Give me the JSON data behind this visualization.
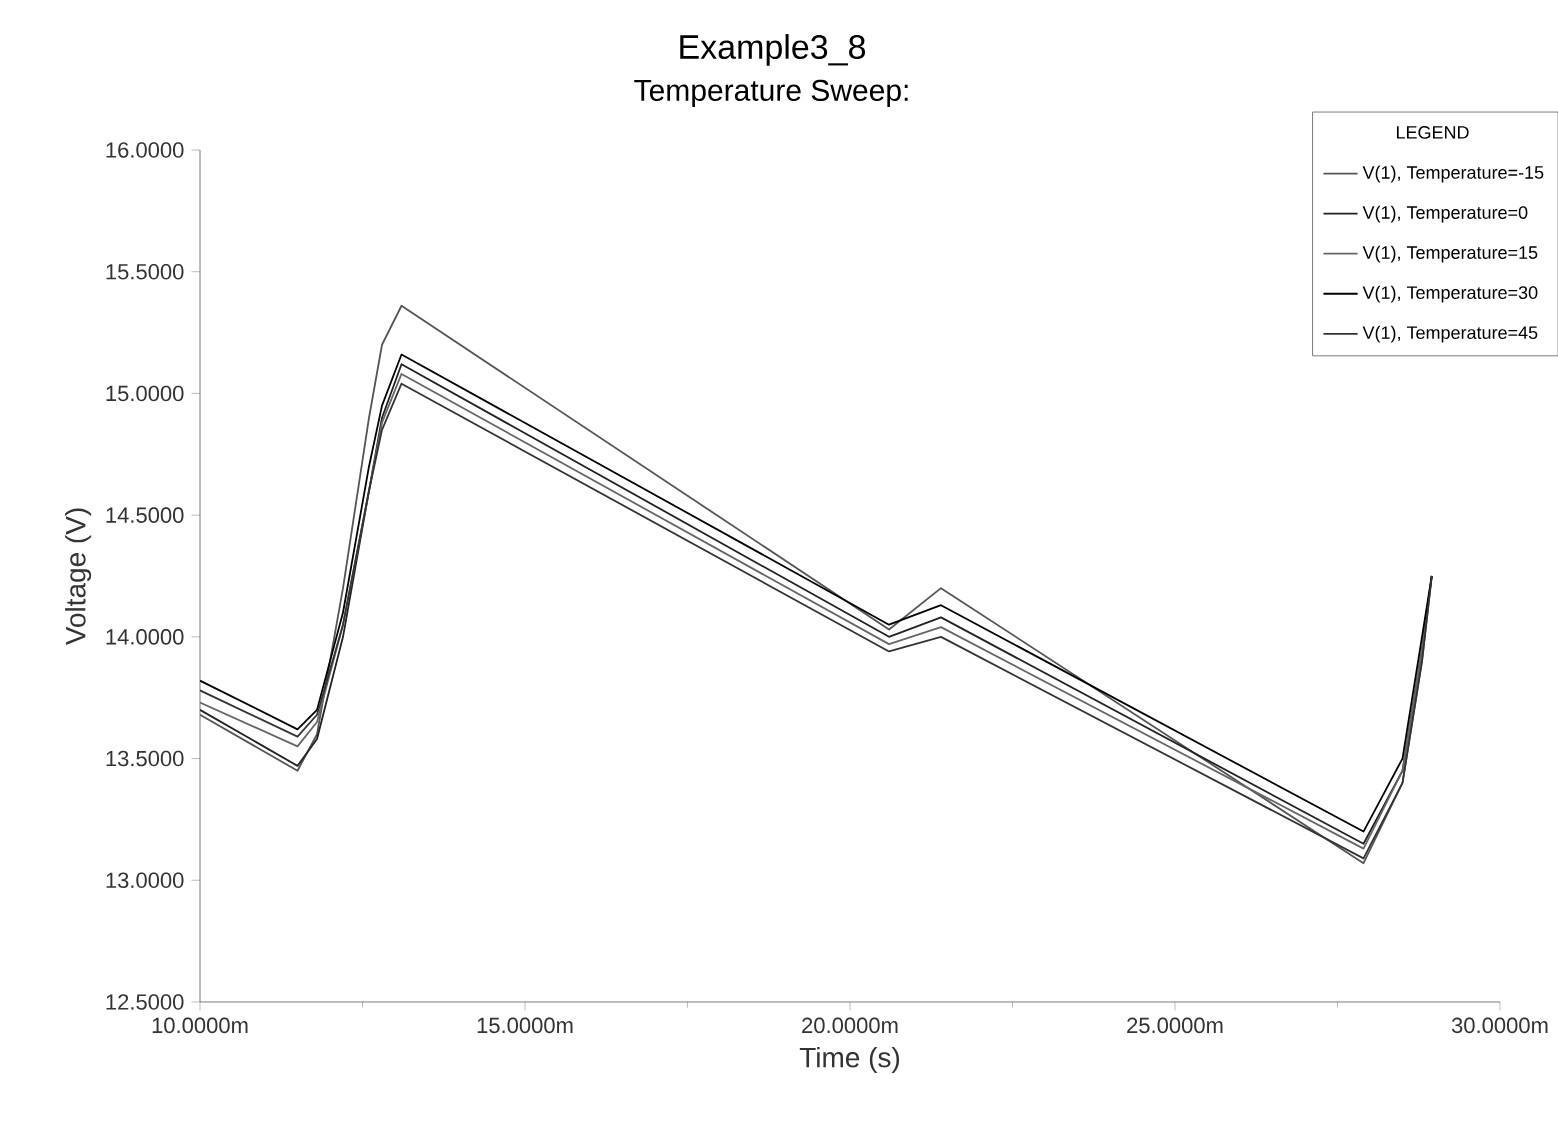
{
  "chart_data": {
    "type": "line",
    "title": "Example3_8",
    "subtitle": "Temperature Sweep:",
    "xlabel": "Time (s)",
    "ylabel": "Voltage (V)",
    "legend_title": "LEGEND",
    "x": [
      10.0,
      11.5,
      11.8,
      12.2,
      12.6,
      12.8,
      13.1,
      20.6,
      21.4,
      27.9,
      28.5,
      28.8,
      28.95
    ],
    "series": [
      {
        "name": "V(1), Temperature=-15",
        "color": "#555555",
        "values": [
          13.68,
          13.45,
          13.6,
          14.2,
          14.9,
          15.2,
          15.36,
          14.03,
          14.2,
          13.07,
          13.4,
          13.9,
          14.25
        ]
      },
      {
        "name": "V(1), Temperature=0",
        "color": "#222222",
        "values": [
          13.7,
          13.47,
          13.58,
          14.0,
          14.6,
          14.9,
          15.12,
          14.0,
          14.08,
          13.15,
          13.45,
          13.95,
          14.25
        ]
      },
      {
        "name": "V(1), Temperature=15",
        "color": "#666666",
        "values": [
          13.73,
          13.55,
          13.65,
          14.05,
          14.6,
          14.88,
          15.08,
          13.97,
          14.04,
          13.13,
          13.45,
          13.95,
          14.25
        ]
      },
      {
        "name": "V(1), Temperature=30",
        "color": "#000000",
        "values": [
          13.82,
          13.62,
          13.7,
          14.1,
          14.7,
          14.95,
          15.16,
          14.05,
          14.13,
          13.2,
          13.5,
          14.0,
          14.25
        ]
      },
      {
        "name": "V(1), Temperature=45",
        "color": "#333333",
        "values": [
          13.78,
          13.59,
          13.68,
          14.05,
          14.6,
          14.85,
          15.04,
          13.94,
          14.0,
          13.09,
          13.4,
          13.9,
          14.25
        ]
      }
    ],
    "xlim": [
      10,
      30
    ],
    "xticks": [
      {
        "value": 10,
        "label": "10.0000m"
      },
      {
        "value": 15,
        "label": "15.0000m"
      },
      {
        "value": 20,
        "label": "20.0000m"
      },
      {
        "value": 25,
        "label": "25.0000m"
      },
      {
        "value": 30,
        "label": "30.0000m"
      }
    ],
    "ylim": [
      12.5,
      16.0
    ],
    "yticks": [
      {
        "value": 12.5,
        "label": "12.5000"
      },
      {
        "value": 13.0,
        "label": "13.0000"
      },
      {
        "value": 13.5,
        "label": "13.5000"
      },
      {
        "value": 14.0,
        "label": "14.0000"
      },
      {
        "value": 14.5,
        "label": "14.5000"
      },
      {
        "value": 15.0,
        "label": "15.0000"
      },
      {
        "value": 15.5,
        "label": "15.5000"
      },
      {
        "value": 16.0,
        "label": "16.0000"
      }
    ],
    "grid": false,
    "legend": "top right",
    "marker": "none",
    "line_style": "solid"
  }
}
